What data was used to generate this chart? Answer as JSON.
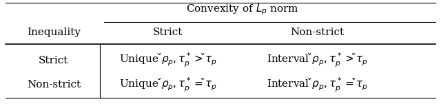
{
  "title": "Convexity of $L_p$ norm",
  "col_header_left": "Inequality",
  "col_header_strict": "Strict",
  "col_header_nonstrict": "Non-strict",
  "row1_label": "Strict",
  "row2_label": "Non-strict",
  "cell_r1c1": "Unique $\\check{\\rho}_p, \\tau_p^* > \\check{\\tau}_p$",
  "cell_r1c2": "Interval $\\check{\\rho}_p, \\tau_p^* > \\check{\\tau}_p$",
  "cell_r2c1": "Unique $\\check{\\rho}_p, \\tau_p^* = \\check{\\tau}_p$",
  "cell_r2c2": "Interval $\\check{\\rho}_p, \\tau_p^* = \\check{\\tau}_p$",
  "bg_color": "#ffffff",
  "text_color": "#000000",
  "fontsize": 11
}
